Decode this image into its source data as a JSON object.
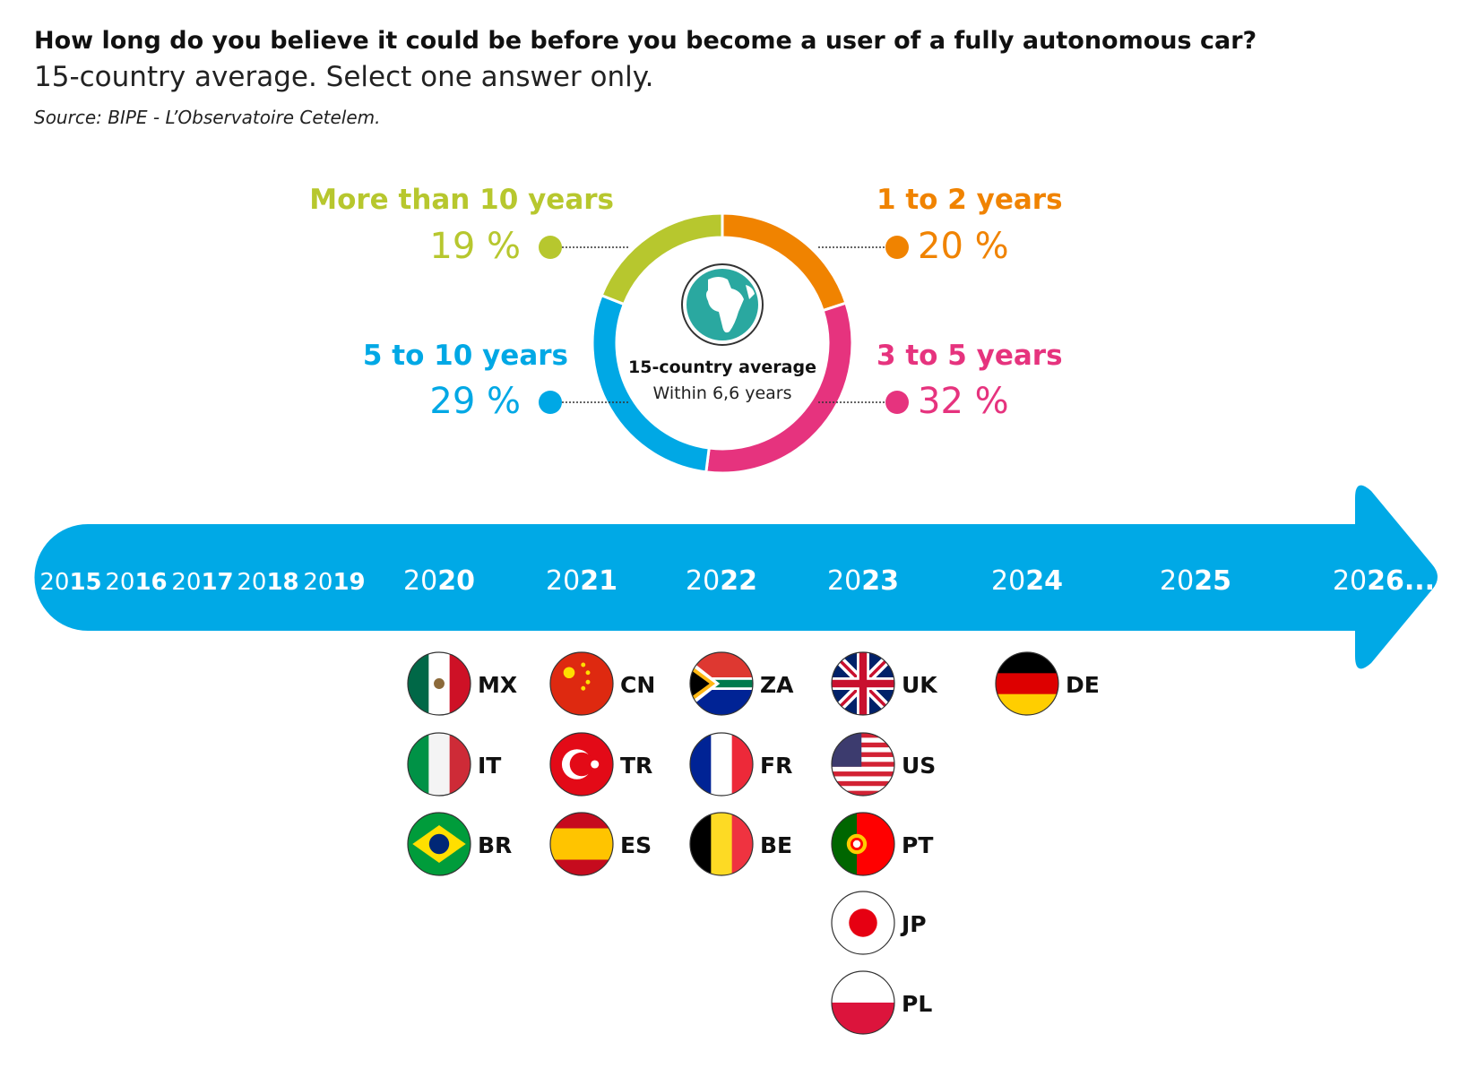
{
  "chart_data": {
    "type": "donut",
    "title": "How long do you believe it could be before you become a user of a fully autonomous car?",
    "subtitle": "15-country average. Select one answer only.",
    "source": "Source: BIPE - L’Observatoire Cetelem.",
    "categories": [
      "1 to 2 years",
      "3 to 5 years",
      "5 to 10 years",
      "More than 10 years"
    ],
    "values": [
      20,
      32,
      29,
      19
    ],
    "value_labels": [
      "20 %",
      "32 %",
      "29 %",
      "19 %"
    ],
    "colors": [
      "#f08300",
      "#e6337e",
      "#00a8e5",
      "#b7c72e"
    ],
    "center_title": "15-country average",
    "center_text": "Within 6,6 years"
  },
  "timeline": {
    "color": "#00a9e6",
    "years": [
      {
        "label": "2015",
        "countries": []
      },
      {
        "label": "2016",
        "countries": []
      },
      {
        "label": "2017",
        "countries": []
      },
      {
        "label": "2018",
        "countries": []
      },
      {
        "label": "2019",
        "countries": []
      },
      {
        "label": "2020",
        "countries": [
          "MX",
          "IT",
          "BR"
        ]
      },
      {
        "label": "2021",
        "countries": [
          "CN",
          "TR",
          "ES"
        ]
      },
      {
        "label": "2022",
        "countries": [
          "ZA",
          "FR",
          "BE"
        ]
      },
      {
        "label": "2023",
        "countries": [
          "UK",
          "US",
          "PT",
          "JP",
          "PL"
        ]
      },
      {
        "label": "2024",
        "countries": [
          "DE"
        ]
      },
      {
        "label": "2025",
        "countries": []
      },
      {
        "label": "2026...",
        "countries": []
      }
    ]
  }
}
